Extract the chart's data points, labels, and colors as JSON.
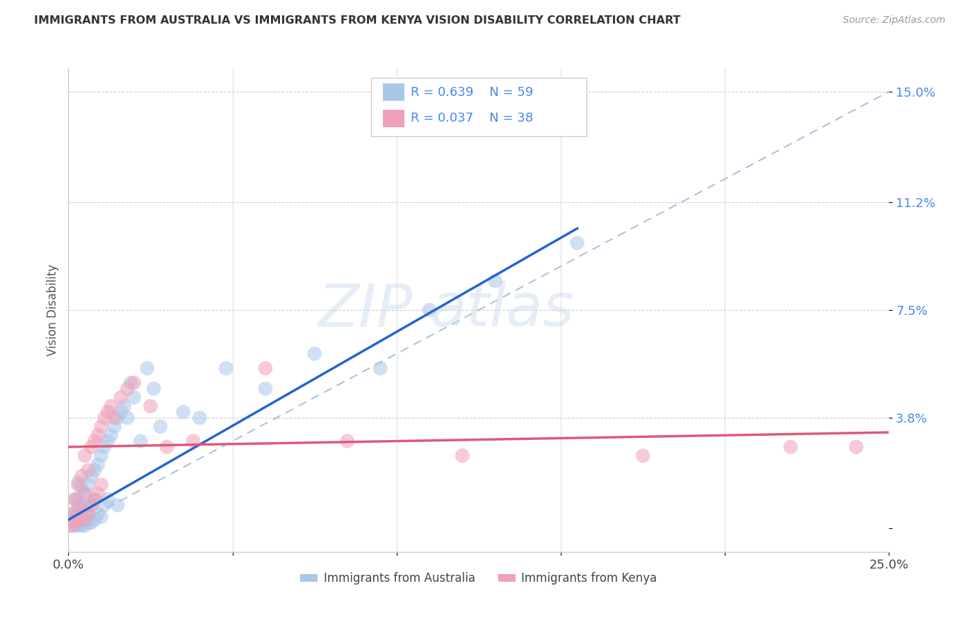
{
  "title": "IMMIGRANTS FROM AUSTRALIA VS IMMIGRANTS FROM KENYA VISION DISABILITY CORRELATION CHART",
  "source": "Source: ZipAtlas.com",
  "ylabel": "Vision Disability",
  "xlim": [
    0,
    0.25
  ],
  "ylim": [
    -0.008,
    0.158
  ],
  "legend_australia": "Immigrants from Australia",
  "legend_kenya": "Immigrants from Kenya",
  "R_australia": 0.639,
  "N_australia": 59,
  "R_kenya": 0.037,
  "N_kenya": 38,
  "color_australia": "#a8c8e8",
  "color_kenya": "#f0a0b8",
  "line_color_australia": "#2266cc",
  "line_color_kenya": "#e05878",
  "diag_color": "#88aad0",
  "background_color": "#ffffff",
  "watermark_zip": "ZIP",
  "watermark_atlas": "atlas",
  "aus_line_x0": 0.0,
  "aus_line_y0": 0.003,
  "aus_line_x1": 0.155,
  "aus_line_y1": 0.103,
  "ken_line_x0": 0.0,
  "ken_line_y0": 0.028,
  "ken_line_x1": 0.25,
  "ken_line_y1": 0.033,
  "scatter_australia_x": [
    0.001,
    0.001,
    0.001,
    0.002,
    0.002,
    0.002,
    0.002,
    0.003,
    0.003,
    0.003,
    0.003,
    0.003,
    0.004,
    0.004,
    0.004,
    0.004,
    0.005,
    0.005,
    0.005,
    0.005,
    0.006,
    0.006,
    0.006,
    0.007,
    0.007,
    0.007,
    0.008,
    0.008,
    0.008,
    0.009,
    0.009,
    0.01,
    0.01,
    0.011,
    0.011,
    0.012,
    0.012,
    0.013,
    0.014,
    0.015,
    0.015,
    0.016,
    0.017,
    0.018,
    0.019,
    0.02,
    0.022,
    0.024,
    0.026,
    0.028,
    0.035,
    0.04,
    0.048,
    0.06,
    0.075,
    0.095,
    0.11,
    0.13,
    0.155
  ],
  "scatter_australia_y": [
    0.001,
    0.003,
    0.005,
    0.001,
    0.002,
    0.004,
    0.01,
    0.001,
    0.003,
    0.006,
    0.01,
    0.016,
    0.001,
    0.004,
    0.008,
    0.014,
    0.001,
    0.003,
    0.007,
    0.012,
    0.002,
    0.005,
    0.015,
    0.002,
    0.008,
    0.018,
    0.003,
    0.01,
    0.02,
    0.005,
    0.022,
    0.004,
    0.025,
    0.008,
    0.028,
    0.01,
    0.03,
    0.032,
    0.035,
    0.008,
    0.038,
    0.04,
    0.042,
    0.038,
    0.05,
    0.045,
    0.03,
    0.055,
    0.048,
    0.035,
    0.04,
    0.038,
    0.055,
    0.048,
    0.06,
    0.055,
    0.075,
    0.085,
    0.098
  ],
  "scatter_kenya_x": [
    0.001,
    0.001,
    0.002,
    0.002,
    0.003,
    0.003,
    0.003,
    0.004,
    0.004,
    0.005,
    0.005,
    0.005,
    0.006,
    0.006,
    0.007,
    0.007,
    0.008,
    0.008,
    0.009,
    0.009,
    0.01,
    0.01,
    0.011,
    0.012,
    0.013,
    0.014,
    0.016,
    0.018,
    0.02,
    0.025,
    0.03,
    0.038,
    0.06,
    0.085,
    0.12,
    0.175,
    0.22,
    0.24
  ],
  "scatter_kenya_y": [
    0.001,
    0.005,
    0.002,
    0.01,
    0.003,
    0.008,
    0.015,
    0.005,
    0.018,
    0.003,
    0.012,
    0.025,
    0.005,
    0.02,
    0.008,
    0.028,
    0.01,
    0.03,
    0.012,
    0.032,
    0.015,
    0.035,
    0.038,
    0.04,
    0.042,
    0.038,
    0.045,
    0.048,
    0.05,
    0.042,
    0.028,
    0.03,
    0.055,
    0.03,
    0.025,
    0.025,
    0.028,
    0.028
  ]
}
